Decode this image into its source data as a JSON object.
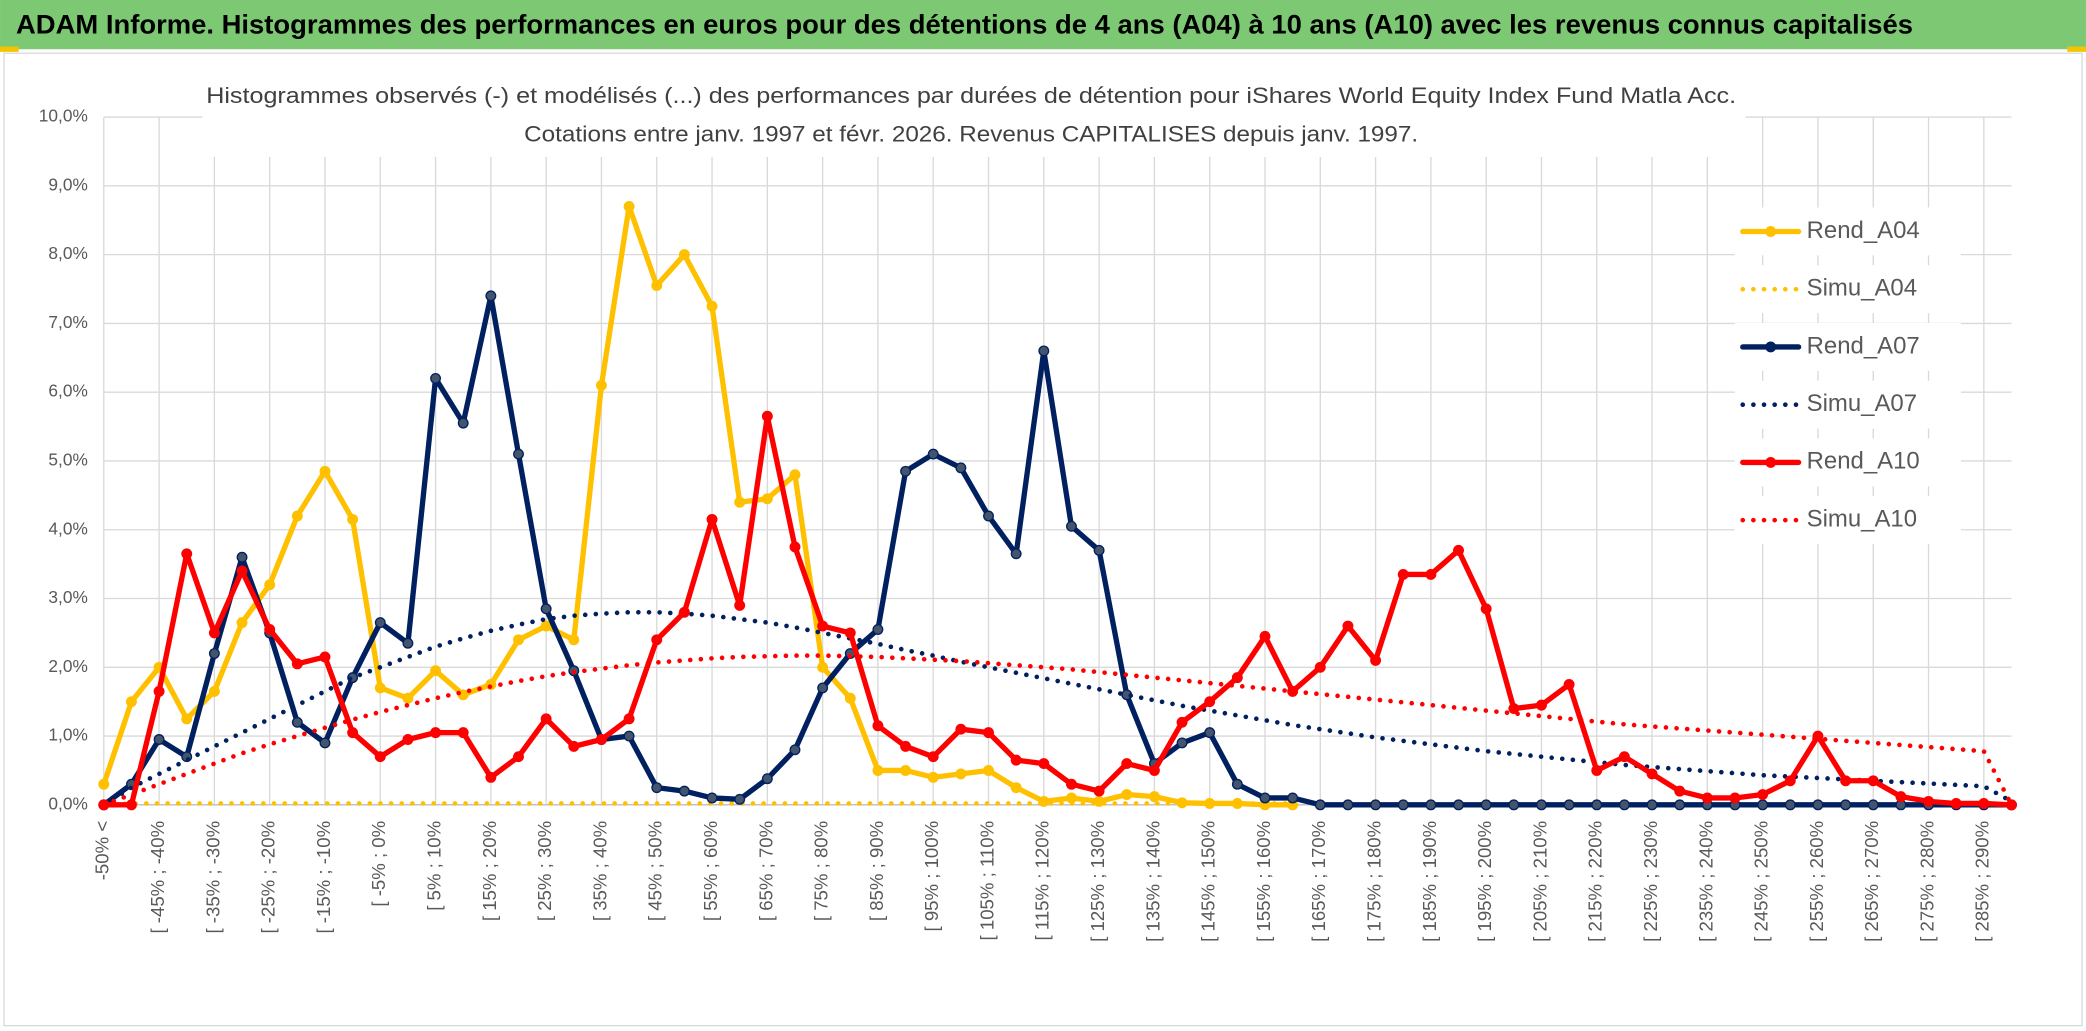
{
  "header": {
    "title": "ADAM Informe. Histogrammes des performances en euros pour des détentions de 4 ans (A04) à 10 ans (A10) avec les revenus connus capitalisés"
  },
  "chart_data": {
    "type": "line",
    "title": "Histogrammes observés (-) et modélisés (...) des performances par durées de détention pour iShares World Equity Index Fund Matla Acc.",
    "subtitle": "Cotations entre janv. 1997 et févr. 2026. Revenus CAPITALISES depuis janv. 1997.",
    "categories": [
      "-50% <",
      null,
      "[ -45% ; -40%",
      null,
      "[ -35% ; -30%",
      null,
      "[ -25% ; -20%",
      null,
      "[ -15% ; -10%",
      null,
      "[ -5% ; 0%",
      null,
      "[ 5% ; 10%",
      null,
      "[ 15% ; 20%",
      null,
      "[ 25% ; 30%",
      null,
      "[ 35% ; 40%",
      null,
      "[ 45% ; 50%",
      null,
      "[ 55% ; 60%",
      null,
      "[ 65% ; 70%",
      null,
      "[ 75% ; 80%",
      null,
      "[ 85% ; 90%",
      null,
      "[ 95% ; 100%",
      null,
      "[ 105% ; 110%",
      null,
      "[ 115% ; 120%",
      null,
      "[ 125% ; 130%",
      null,
      "[ 135% ; 140%",
      null,
      "[ 145% ; 150%",
      null,
      "[ 155% ; 160%",
      null,
      "[ 165% ; 170%",
      null,
      "[ 175% ; 180%",
      null,
      "[ 185% ; 190%",
      null,
      "[ 195% ; 200%",
      null,
      "[ 205% ; 210%",
      null,
      "[ 215% ; 220%",
      null,
      "[ 225% ; 230%",
      null,
      "[ 235% ; 240%",
      null,
      "[ 245% ; 250%",
      null,
      "[ 255% ; 260%",
      null,
      "[ 265% ; 270%",
      null,
      "[ 275% ; 280%",
      null,
      "[ 285% ; 290%",
      null
    ],
    "series": [
      {
        "name": "Rend_A04",
        "color": "#FFC000",
        "line_style": "solid",
        "markers": true,
        "values": [
          0.3,
          1.5,
          2.0,
          1.25,
          1.65,
          2.65,
          3.2,
          4.2,
          4.85,
          4.15,
          1.7,
          1.55,
          1.95,
          1.6,
          1.75,
          2.4,
          2.6,
          2.4,
          6.1,
          8.7,
          7.55,
          8.0,
          7.25,
          4.4,
          4.45,
          4.8,
          2.0,
          1.55,
          0.5,
          0.5,
          0.4,
          0.45,
          0.5,
          0.25,
          0.05,
          0.1,
          0.05,
          0.15,
          0.12,
          0.03,
          0.02,
          0.02,
          0.0,
          0.0,
          null,
          null,
          null,
          null,
          null,
          null,
          null,
          null,
          null,
          null,
          null,
          null,
          null,
          null,
          null,
          null,
          null,
          null,
          null,
          null,
          null,
          null,
          null,
          null,
          null,
          null
        ]
      },
      {
        "name": "Simu_A04",
        "color": "#FFC000",
        "line_style": "dotted",
        "markers": false,
        "values": [
          0,
          0.02,
          0.02,
          0.02,
          0.02,
          0.02,
          0.02,
          0.02,
          0.02,
          0.02,
          0.02,
          0.02,
          0.02,
          0.02,
          0.02,
          0.02,
          0.02,
          0.02,
          0.02,
          0.02,
          0.02,
          0.02,
          0.02,
          0.02,
          0.02,
          0.02,
          0.02,
          0.02,
          0.02,
          0.02,
          0.02,
          0.02,
          0.02,
          0.02,
          0.02,
          0.02,
          0.02,
          0.02,
          0.02,
          0.02,
          0.02,
          0.02,
          0.02,
          0.02,
          null,
          null,
          null,
          null,
          null,
          null,
          null,
          null,
          null,
          null,
          null,
          null,
          null,
          null,
          null,
          null,
          null,
          null,
          null,
          null,
          null,
          null,
          null,
          null,
          null,
          null
        ]
      },
      {
        "name": "Rend_A07",
        "color": "#002060",
        "line_style": "solid",
        "markers": true,
        "values": [
          0,
          0.3,
          0.95,
          0.7,
          2.2,
          3.6,
          2.5,
          1.2,
          0.9,
          1.85,
          2.65,
          2.35,
          6.2,
          5.55,
          7.4,
          5.1,
          2.85,
          1.95,
          0.95,
          1.0,
          0.25,
          0.2,
          0.1,
          0.08,
          0.38,
          0.8,
          1.7,
          2.2,
          2.55,
          4.85,
          5.1,
          4.9,
          4.2,
          3.65,
          6.6,
          4.05,
          3.7,
          1.6,
          0.6,
          0.9,
          1.05,
          0.3,
          0.1,
          0.1,
          0,
          0,
          0,
          0,
          0,
          0,
          0,
          0,
          0,
          0,
          0,
          0,
          0,
          0,
          0,
          0,
          0,
          0,
          0,
          0,
          0,
          0,
          0,
          0,
          0,
          0
        ]
      },
      {
        "name": "Simu_A07",
        "color": "#002060",
        "line_style": "dotted",
        "markers": false,
        "values": [
          0,
          0.25,
          0.45,
          0.65,
          0.85,
          1.05,
          1.25,
          1.45,
          1.65,
          1.85,
          2.0,
          2.15,
          2.3,
          2.42,
          2.53,
          2.62,
          2.7,
          2.75,
          2.78,
          2.8,
          2.8,
          2.78,
          2.75,
          2.7,
          2.65,
          2.58,
          2.5,
          2.42,
          2.34,
          2.25,
          2.17,
          2.08,
          2.0,
          1.92,
          1.84,
          1.76,
          1.68,
          1.6,
          1.52,
          1.44,
          1.37,
          1.3,
          1.23,
          1.16,
          1.1,
          1.04,
          0.98,
          0.93,
          0.88,
          0.83,
          0.78,
          0.74,
          0.7,
          0.66,
          0.62,
          0.58,
          0.55,
          0.52,
          0.49,
          0.46,
          0.43,
          0.41,
          0.39,
          0.37,
          0.35,
          0.33,
          0.31,
          0.29,
          0.27,
          0.05
        ]
      },
      {
        "name": "Rend_A10",
        "color": "#FF0000",
        "line_style": "solid",
        "markers": true,
        "values": [
          0,
          0,
          1.65,
          3.65,
          2.5,
          3.4,
          2.55,
          2.05,
          2.15,
          1.05,
          0.7,
          0.95,
          1.05,
          1.05,
          0.4,
          0.7,
          1.25,
          0.85,
          0.95,
          1.25,
          2.4,
          2.8,
          4.15,
          2.9,
          5.65,
          3.75,
          2.6,
          2.5,
          1.15,
          0.85,
          0.7,
          1.1,
          1.05,
          0.65,
          0.6,
          0.3,
          0.2,
          0.6,
          0.5,
          1.2,
          1.5,
          1.85,
          2.45,
          1.65,
          2.0,
          2.6,
          2.1,
          3.35,
          3.35,
          3.7,
          2.85,
          1.4,
          1.45,
          1.75,
          0.5,
          0.7,
          0.45,
          0.2,
          0.1,
          0.1,
          0.15,
          0.35,
          1.0,
          0.35,
          0.35,
          0.12,
          0.05,
          0.02,
          0.02,
          0.0
        ]
      },
      {
        "name": "Simu_A10",
        "color": "#FF0000",
        "line_style": "dotted",
        "markers": false,
        "values": [
          0,
          0.15,
          0.3,
          0.45,
          0.6,
          0.75,
          0.88,
          1.0,
          1.12,
          1.24,
          1.35,
          1.45,
          1.55,
          1.64,
          1.72,
          1.8,
          1.87,
          1.93,
          1.98,
          2.03,
          2.07,
          2.1,
          2.13,
          2.15,
          2.16,
          2.17,
          2.17,
          2.16,
          2.15,
          2.13,
          2.11,
          2.09,
          2.06,
          2.03,
          2.0,
          1.97,
          1.93,
          1.89,
          1.85,
          1.81,
          1.77,
          1.73,
          1.69,
          1.65,
          1.61,
          1.57,
          1.53,
          1.49,
          1.45,
          1.41,
          1.37,
          1.33,
          1.29,
          1.25,
          1.21,
          1.17,
          1.14,
          1.11,
          1.08,
          1.05,
          1.02,
          0.99,
          0.96,
          0.93,
          0.9,
          0.87,
          0.84,
          0.81,
          0.78,
          0.0
        ]
      }
    ],
    "ylim": [
      0,
      10
    ],
    "yticks": [
      {
        "value": 0,
        "label": "0,0%"
      },
      {
        "value": 1,
        "label": "1,0%"
      },
      {
        "value": 2,
        "label": "2,0%"
      },
      {
        "value": 3,
        "label": "3,0%"
      },
      {
        "value": 4,
        "label": "4,0%"
      },
      {
        "value": 5,
        "label": "5,0%"
      },
      {
        "value": 6,
        "label": "6,0%"
      },
      {
        "value": 7,
        "label": "7,0%"
      },
      {
        "value": 8,
        "label": "8,0%"
      },
      {
        "value": 9,
        "label": "9,0%"
      },
      {
        "value": 10,
        "label": "10,0%"
      }
    ],
    "grid": true,
    "legend": "right"
  }
}
